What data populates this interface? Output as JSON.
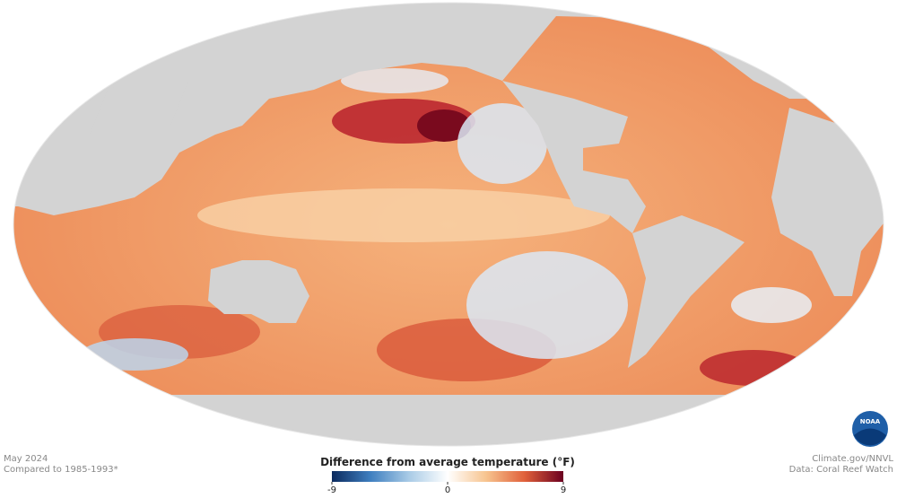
{
  "map": {
    "date": "May 2024",
    "baseline": "Compared to 1985-1993*",
    "credit": "Climate.gov/NNVL",
    "source": "Data: Coral Reef Watch",
    "logo": "NOAA",
    "legend": {
      "title": "Difference from average temperature (°F)",
      "lim": [
        -9,
        9
      ],
      "ticks": [
        -9,
        0,
        9
      ],
      "colors": [
        "#0b2a5e",
        "#3f7fc0",
        "#a9cbe6",
        "#ffffff",
        "#f7c48f",
        "#e0603a",
        "#6b0020"
      ]
    }
  }
}
